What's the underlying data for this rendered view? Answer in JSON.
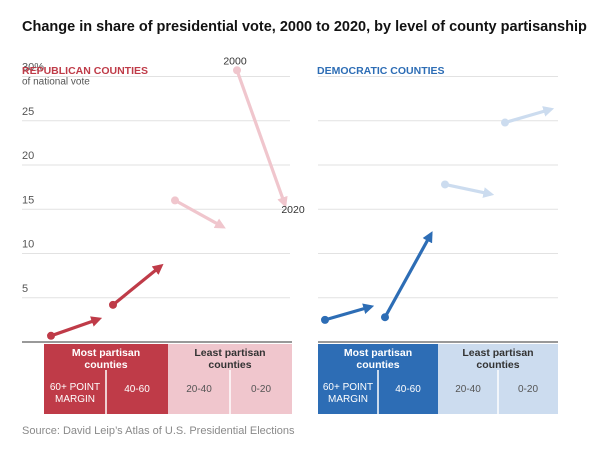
{
  "title": "Change in share of presidential vote, 2000 to 2020, by level of county partisanship",
  "source": "Source: David Leip’s Atlas of U.S. Presidential Elections",
  "colors": {
    "republican": "#bf3b48",
    "republican_light": "#f0c6cd",
    "democratic": "#2d6db5",
    "democratic_light": "#ccdcef",
    "grid": "#e2e2e2",
    "axis_text": "#555555"
  },
  "chart_data": {
    "type": "line",
    "title": "Change in share of presidential vote, 2000 to 2020, by level of county partisanship",
    "ylabel": "of national vote",
    "ylim": [
      0,
      30
    ],
    "yticks": [
      5,
      10,
      15,
      20,
      25,
      30
    ],
    "ytick_labels": [
      "5",
      "10",
      "15",
      "20",
      "25",
      "30%"
    ],
    "grid": true,
    "period_labels": {
      "start": "2000",
      "end": "2020"
    },
    "categories": [
      "60+ POINT MARGIN",
      "40-60",
      "20-40",
      "0-20"
    ],
    "category_groups": [
      {
        "label": "Most partisan counties",
        "categories": [
          "60+ POINT MARGIN",
          "40-60"
        ]
      },
      {
        "label": "Least partisan counties",
        "categories": [
          "20-40",
          "0-20"
        ]
      }
    ],
    "panels": [
      {
        "name": "REPUBLICAN COUNTIES",
        "series": [
          {
            "category": "60+ POINT MARGIN",
            "start": 0.7,
            "end": 2.6
          },
          {
            "category": "40-60",
            "start": 4.2,
            "end": 8.6
          },
          {
            "category": "20-40",
            "start": 16.0,
            "end": 13.0
          },
          {
            "category": "0-20",
            "start": 30.7,
            "end": 15.5
          }
        ]
      },
      {
        "name": "DEMOCRATIC COUNTIES",
        "series": [
          {
            "category": "60+ POINT MARGIN",
            "start": 2.5,
            "end": 4.0
          },
          {
            "category": "40-60",
            "start": 2.8,
            "end": 12.2
          },
          {
            "category": "20-40",
            "start": 17.8,
            "end": 16.7
          },
          {
            "category": "0-20",
            "start": 24.8,
            "end": 26.3
          }
        ]
      }
    ]
  }
}
